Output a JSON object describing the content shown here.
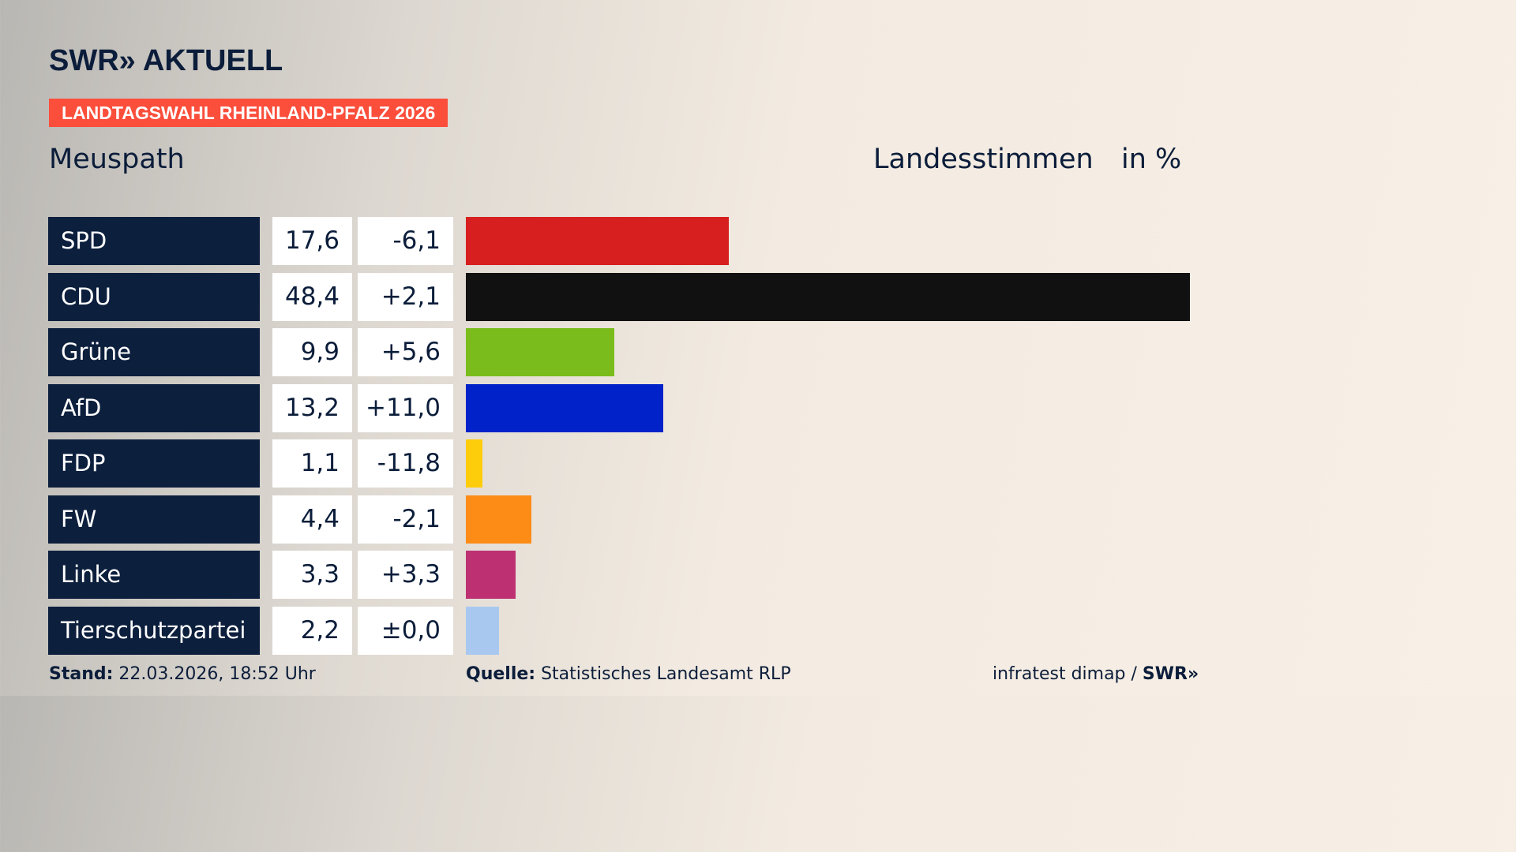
{
  "header": {
    "logo": "SWR» AKTUELL",
    "tag": "LANDTAGSWAHL RHEINLAND-PFALZ 2026",
    "place": "Meuspath",
    "vote_type": "Landesstimmen",
    "unit": "in %"
  },
  "chart_data": {
    "type": "bar",
    "orientation": "horizontal",
    "categories": [
      "SPD",
      "CDU",
      "Grüne",
      "AfD",
      "FDP",
      "FW",
      "Linke",
      "Tierschutzpartei"
    ],
    "values": [
      17.6,
      48.4,
      9.9,
      13.2,
      1.1,
      4.4,
      3.3,
      2.2
    ],
    "value_labels": [
      "17,6",
      "48,4",
      "9,9",
      "13,2",
      "1,1",
      "4,4",
      "3,3",
      "2,2"
    ],
    "diff_labels": [
      "-6,1",
      "+2,1",
      "+5,6",
      "+11,0",
      "-11,8",
      "-2,1",
      "+3,3",
      "±0,0"
    ],
    "colors": [
      "#d71f20",
      "#111111",
      "#79bc1c",
      "#0022c8",
      "#fdcd0b",
      "#fd8c17",
      "#bd3173",
      "#a9c8ef"
    ],
    "xlim": [
      0,
      48.4
    ]
  },
  "footer": {
    "stand_label": "Stand:",
    "stand_value": "22.03.2026, 18:52 Uhr",
    "source_label": "Quelle:",
    "source_value": "Statistisches Landesamt RLP",
    "credit": "infratest dimap / ",
    "credit_logo": "SWR»"
  }
}
